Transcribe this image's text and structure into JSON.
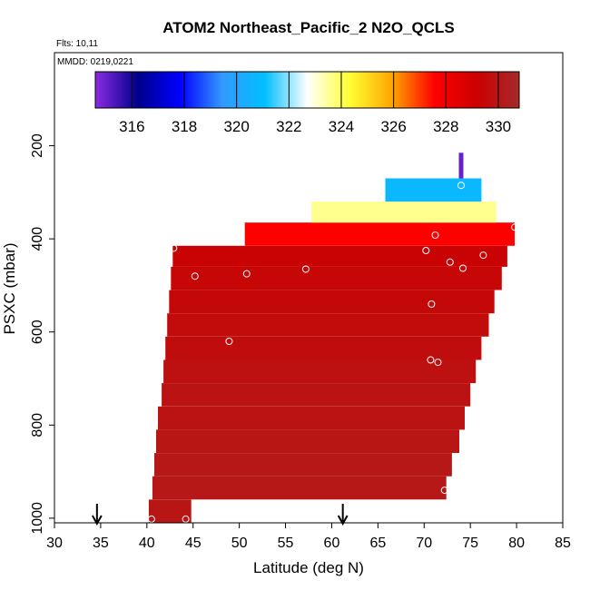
{
  "chart_data": {
    "type": "heatmap",
    "title": "ATOM2 Northeast_Pacific_2 N2O_QCLS",
    "annotations": {
      "flights": "Flts: 10,11",
      "dates": "MMDD: 0219,0221"
    },
    "xlabel": "Latitude (deg N)",
    "ylabel": "PSXC (mbar)",
    "xlim": [
      30,
      85
    ],
    "ylim": [
      1010,
      0
    ],
    "xticks": [
      30,
      35,
      40,
      45,
      50,
      55,
      60,
      65,
      70,
      75,
      80,
      85
    ],
    "yticks": [
      200,
      400,
      600,
      800,
      1000
    ],
    "colorbar": {
      "range": [
        314.6,
        330.8
      ],
      "ticks": [
        316,
        318,
        320,
        322,
        324,
        326,
        328,
        330
      ],
      "colors": [
        "#8a2be2",
        "#00008b",
        "#0000ff",
        "#3399ff",
        "#00bfff",
        "#ffffff",
        "#ffff33",
        "#ffa500",
        "#ff0000",
        "#cc0000",
        "#a52a2a"
      ]
    },
    "bands": [
      {
        "p": [
          960,
          1010
        ],
        "lat": [
          40.2,
          44.8
        ],
        "value": 330.0
      },
      {
        "p": [
          910,
          960
        ],
        "lat": [
          40.6,
          72.4
        ],
        "value": 330.1
      },
      {
        "p": [
          860,
          910
        ],
        "lat": [
          40.8,
          73.0
        ],
        "value": 330.1
      },
      {
        "p": [
          810,
          860
        ],
        "lat": [
          41.0,
          73.8
        ],
        "value": 330.0
      },
      {
        "p": [
          760,
          810
        ],
        "lat": [
          41.2,
          74.4
        ],
        "value": 329.9
      },
      {
        "p": [
          710,
          760
        ],
        "lat": [
          41.6,
          75.0
        ],
        "value": 329.9
      },
      {
        "p": [
          660,
          710
        ],
        "lat": [
          41.8,
          75.6
        ],
        "value": 329.8
      },
      {
        "p": [
          610,
          660
        ],
        "lat": [
          42.0,
          76.2
        ],
        "value": 329.7
      },
      {
        "p": [
          560,
          610
        ],
        "lat": [
          42.2,
          77.0
        ],
        "value": 329.6
      },
      {
        "p": [
          510,
          560
        ],
        "lat": [
          42.4,
          77.6
        ],
        "value": 329.5
      },
      {
        "p": [
          460,
          510
        ],
        "lat": [
          42.6,
          78.4
        ],
        "value": 329.4
      },
      {
        "p": [
          415,
          460
        ],
        "lat": [
          42.8,
          79.0
        ],
        "value": 329.3
      },
      {
        "p": [
          365,
          415
        ],
        "lat": [
          50.6,
          79.8
        ],
        "value": 327.6
      },
      {
        "p": [
          320,
          365
        ],
        "lat": [
          57.8,
          77.8
        ],
        "value": 323.6
      },
      {
        "p": [
          270,
          320
        ],
        "lat": [
          65.8,
          76.2
        ],
        "value": 320.8
      }
    ],
    "profile": {
      "lat": 74.0,
      "p": [
        215,
        270
      ],
      "value": 315.0
    },
    "points": [
      {
        "lat": 40.5,
        "p": 1002
      },
      {
        "lat": 44.2,
        "p": 1002
      },
      {
        "lat": 42.9,
        "p": 420
      },
      {
        "lat": 45.2,
        "p": 480
      },
      {
        "lat": 48.9,
        "p": 620
      },
      {
        "lat": 50.8,
        "p": 475
      },
      {
        "lat": 57.2,
        "p": 465
      },
      {
        "lat": 70.2,
        "p": 425
      },
      {
        "lat": 71.2,
        "p": 392
      },
      {
        "lat": 72.8,
        "p": 450
      },
      {
        "lat": 74.2,
        "p": 463
      },
      {
        "lat": 76.4,
        "p": 435
      },
      {
        "lat": 79.8,
        "p": 375
      },
      {
        "lat": 70.8,
        "p": 540
      },
      {
        "lat": 70.7,
        "p": 660
      },
      {
        "lat": 71.5,
        "p": 665
      },
      {
        "lat": 74.0,
        "p": 285
      },
      {
        "lat": 72.2,
        "p": 940
      }
    ],
    "markers": [
      34.6,
      61.2
    ]
  }
}
